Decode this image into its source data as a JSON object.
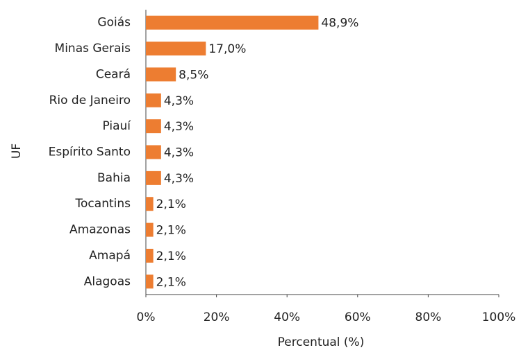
{
  "chart_data": {
    "type": "bar",
    "orientation": "horizontal",
    "xlabel": "Percentual (%)",
    "ylabel": "UF",
    "categories": [
      "Goiás",
      "Minas Gerais",
      "Ceará",
      "Rio de Janeiro",
      "Piauí",
      "Espírito Santo",
      "Bahia",
      "Tocantins",
      "Amazonas",
      "Amapá",
      "Alagoas"
    ],
    "values": [
      48.9,
      17.0,
      8.5,
      4.3,
      4.3,
      4.3,
      4.3,
      2.1,
      2.1,
      2.1,
      2.1
    ],
    "value_labels": [
      "48,9%",
      "17,0%",
      "8,5%",
      "4,3%",
      "4,3%",
      "4,3%",
      "4,3%",
      "2,1%",
      "2,1%",
      "2,1%",
      "2,1%"
    ],
    "color": "#ed7d31",
    "xlim": [
      0,
      100
    ],
    "xticks": [
      {
        "value": 0,
        "label": "0%"
      },
      {
        "value": 20,
        "label": "20%"
      },
      {
        "value": 40,
        "label": "40%"
      },
      {
        "value": 60,
        "label": "60%"
      },
      {
        "value": 80,
        "label": "80%"
      },
      {
        "value": 100,
        "label": "100%"
      }
    ],
    "grid": false
  }
}
